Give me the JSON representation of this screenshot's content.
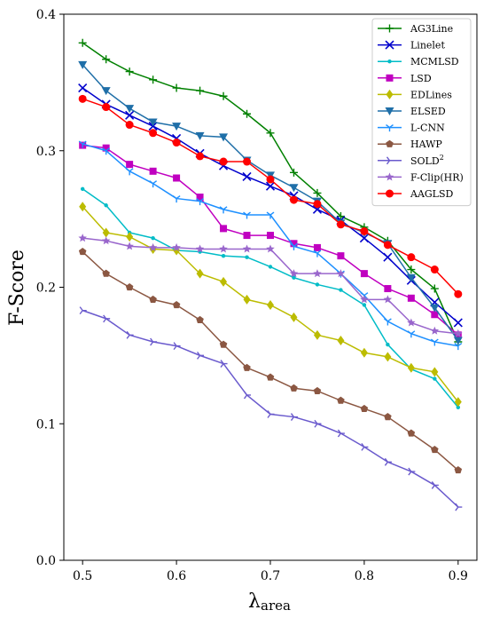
{
  "chart_data": {
    "type": "line",
    "xlabel_main": "λ",
    "xlabel_sub": "area",
    "ylabel": "F-Score",
    "xlim": [
      0.48,
      0.92
    ],
    "ylim": [
      0.0,
      0.4
    ],
    "xticks": [
      0.5,
      0.6,
      0.7,
      0.8,
      0.9
    ],
    "yticks": [
      0.0,
      0.1,
      0.2,
      0.3,
      0.4
    ],
    "xtick_labels": [
      "0.5",
      "0.6",
      "0.7",
      "0.8",
      "0.9"
    ],
    "ytick_labels": [
      "0.0",
      "0.1",
      "0.2",
      "0.3",
      "0.4"
    ],
    "grid": false,
    "legend_position": "top-right",
    "x": [
      0.5,
      0.525,
      0.55,
      0.575,
      0.6,
      0.625,
      0.65,
      0.675,
      0.7,
      0.725,
      0.75,
      0.775,
      0.8,
      0.825,
      0.85,
      0.875,
      0.9
    ],
    "series": [
      {
        "name": "AG3Line",
        "color": "#008000",
        "marker": "plus",
        "values": [
          0.379,
          0.367,
          0.358,
          0.352,
          0.346,
          0.344,
          0.34,
          0.327,
          0.313,
          0.284,
          0.269,
          0.252,
          0.244,
          0.234,
          0.213,
          0.199,
          0.16
        ]
      },
      {
        "name": "Linelet",
        "color": "#0000cc",
        "marker": "x",
        "values": [
          0.346,
          0.334,
          0.326,
          0.318,
          0.309,
          0.298,
          0.289,
          0.281,
          0.274,
          0.267,
          0.257,
          0.249,
          0.236,
          0.222,
          0.205,
          0.189,
          0.174
        ]
      },
      {
        "name": "MCMLSD",
        "color": "#00bcc7",
        "marker": "dot",
        "values": [
          0.272,
          0.26,
          0.24,
          0.236,
          0.227,
          0.226,
          0.223,
          0.222,
          0.215,
          0.207,
          0.202,
          0.198,
          0.187,
          0.158,
          0.14,
          0.133,
          0.112
        ]
      },
      {
        "name": "LSD",
        "color": "#c000c0",
        "marker": "square",
        "values": [
          0.304,
          0.302,
          0.29,
          0.285,
          0.28,
          0.266,
          0.243,
          0.238,
          0.238,
          0.232,
          0.229,
          0.223,
          0.21,
          0.199,
          0.192,
          0.18,
          0.165
        ]
      },
      {
        "name": "EDLines",
        "color": "#bcbc00",
        "marker": "diamond",
        "values": [
          0.259,
          0.24,
          0.237,
          0.228,
          0.227,
          0.21,
          0.204,
          0.191,
          0.187,
          0.178,
          0.165,
          0.161,
          0.152,
          0.149,
          0.141,
          0.138,
          0.116
        ]
      },
      {
        "name": "ELSED",
        "color": "#1f6fa8",
        "marker": "triangle-down",
        "values": [
          0.363,
          0.344,
          0.331,
          0.321,
          0.318,
          0.311,
          0.31,
          0.293,
          0.282,
          0.273,
          0.263,
          0.247,
          0.24,
          0.232,
          0.207,
          0.185,
          0.161
        ]
      },
      {
        "name": "L-CNN",
        "color": "#1e90ff",
        "marker": "tri-down",
        "values": [
          0.305,
          0.3,
          0.285,
          0.276,
          0.265,
          0.263,
          0.257,
          0.253,
          0.253,
          0.23,
          0.225,
          0.21,
          0.194,
          0.175,
          0.166,
          0.16,
          0.157
        ]
      },
      {
        "name": "HAWP",
        "color": "#8b5742",
        "marker": "pentagon",
        "values": [
          0.226,
          0.21,
          0.2,
          0.191,
          0.187,
          0.176,
          0.158,
          0.141,
          0.134,
          0.126,
          0.124,
          0.117,
          0.111,
          0.105,
          0.093,
          0.081,
          0.066
        ]
      },
      {
        "name": "SOLD",
        "name_sup": "2",
        "color": "#6a5acd",
        "marker": "tri-right",
        "values": [
          0.183,
          0.177,
          0.165,
          0.16,
          0.157,
          0.15,
          0.144,
          0.121,
          0.107,
          0.105,
          0.1,
          0.093,
          0.083,
          0.072,
          0.065,
          0.055,
          0.039
        ]
      },
      {
        "name": "F-Clip(HR)",
        "color": "#9966cc",
        "marker": "star",
        "values": [
          0.236,
          0.234,
          0.23,
          0.229,
          0.229,
          0.228,
          0.228,
          0.228,
          0.228,
          0.21,
          0.21,
          0.21,
          0.191,
          0.191,
          0.174,
          0.168,
          0.166
        ]
      },
      {
        "name": "AAGLSD",
        "color": "#ff0000",
        "marker": "circle",
        "values": [
          0.338,
          0.332,
          0.319,
          0.313,
          0.306,
          0.296,
          0.292,
          0.292,
          0.279,
          0.264,
          0.261,
          0.246,
          0.241,
          0.231,
          0.222,
          0.213,
          0.195
        ]
      }
    ]
  }
}
